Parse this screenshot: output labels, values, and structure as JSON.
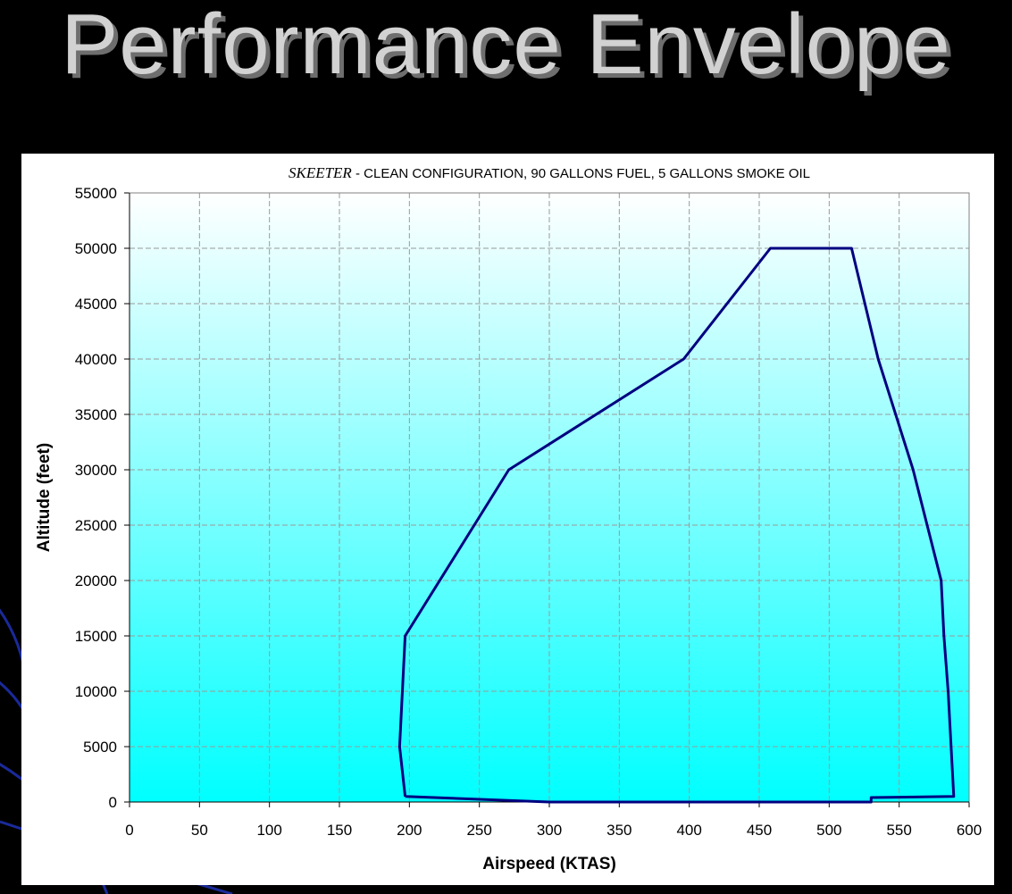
{
  "slide": {
    "title": "Performance Envelope",
    "background": "#000000",
    "deco_color": "#1a2a9a"
  },
  "chart_data": {
    "type": "line",
    "title_italic": "SKEETER",
    "title_rest": " - CLEAN CONFIGURATION, 90 GALLONS FUEL, 5 GALLONS SMOKE OIL",
    "xlabel": "Airspeed (KTAS)",
    "ylabel": "Altitude (feet)",
    "xlim": [
      0,
      600
    ],
    "ylim": [
      0,
      55000
    ],
    "x_ticks": [
      0,
      50,
      100,
      150,
      200,
      250,
      300,
      350,
      400,
      450,
      500,
      550,
      600
    ],
    "y_ticks": [
      0,
      5000,
      10000,
      15000,
      20000,
      25000,
      30000,
      35000,
      40000,
      45000,
      50000,
      55000
    ],
    "grid": true,
    "plot_gradient": [
      "#ffffff",
      "#00ffff"
    ],
    "series": [
      {
        "color": "#000080",
        "points": [
          [
            197,
            500
          ],
          [
            193,
            5000
          ],
          [
            195,
            10000
          ],
          [
            197,
            15000
          ],
          [
            271,
            30000
          ],
          [
            396,
            40000
          ],
          [
            458,
            50000
          ],
          [
            516,
            50000
          ],
          [
            535,
            40000
          ],
          [
            560,
            30000
          ],
          [
            580,
            20000
          ],
          [
            582,
            15000
          ],
          [
            585,
            10000
          ],
          [
            589,
            500
          ],
          [
            530,
            400
          ],
          [
            530,
            0
          ],
          [
            300,
            0
          ],
          [
            197,
            500
          ]
        ]
      }
    ]
  }
}
